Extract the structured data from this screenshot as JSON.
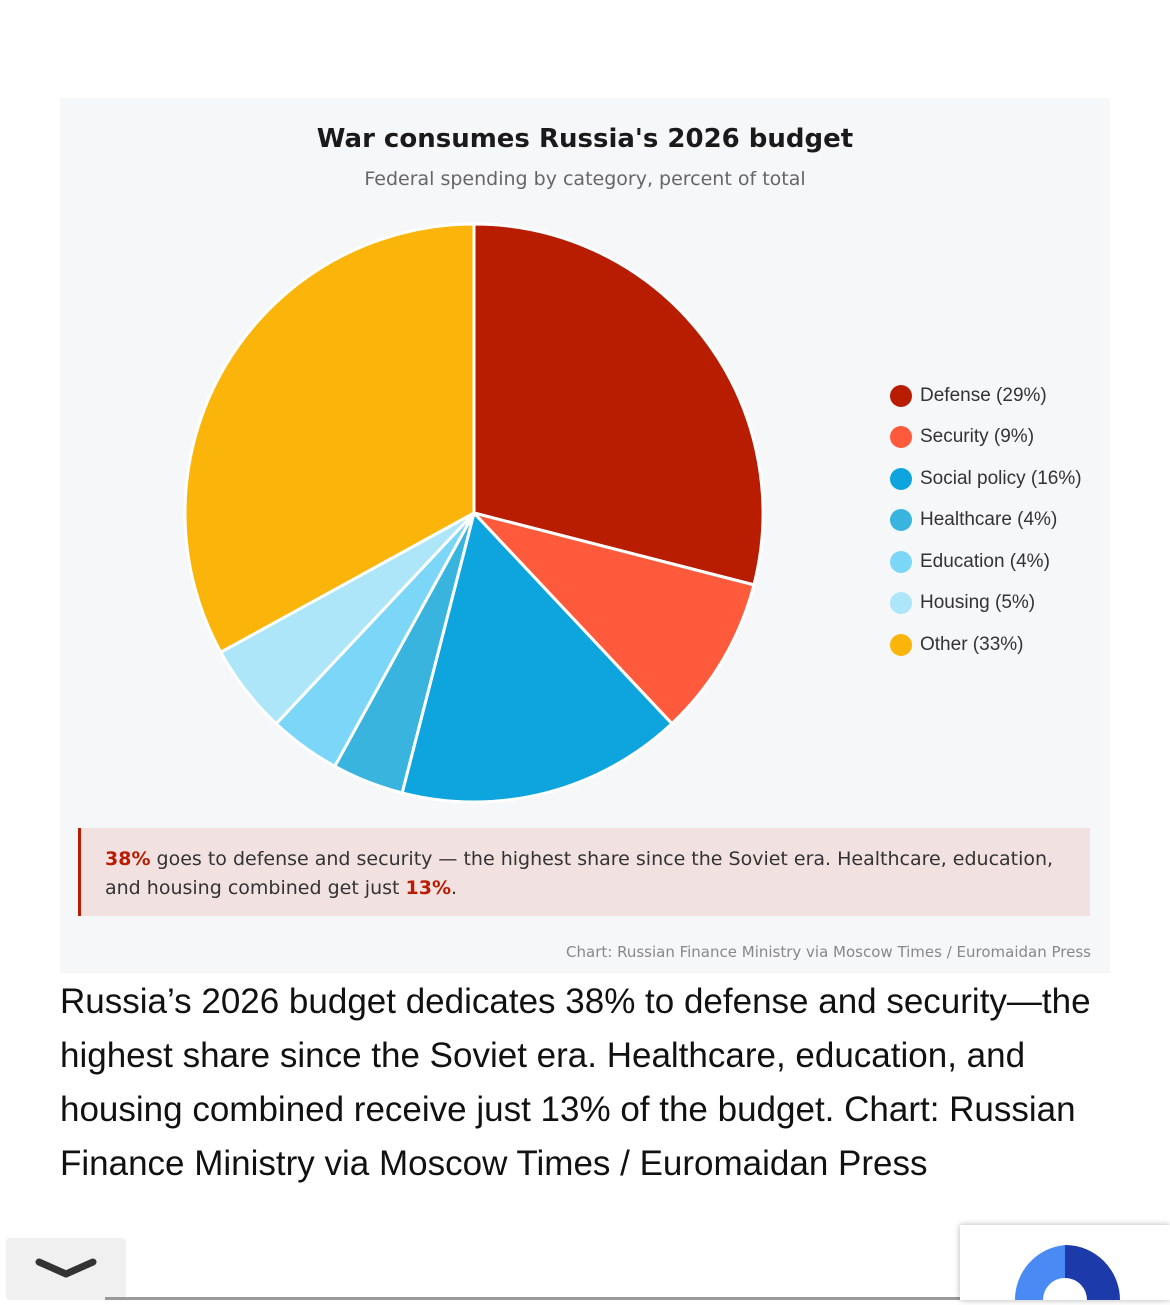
{
  "chart_data": {
    "type": "pie",
    "title": "War consumes Russia's 2026 budget",
    "subtitle": "Federal spending by category, percent of total",
    "legend_position": "right",
    "slices": [
      {
        "label": "Defense",
        "value": 29,
        "legend": "Defense (29%)",
        "color": "#b81d02"
      },
      {
        "label": "Security",
        "value": 9,
        "legend": "Security (9%)",
        "color": "#fe5a3b"
      },
      {
        "label": "Social policy",
        "value": 16,
        "legend": "Social policy (16%)",
        "color": "#0ea5de"
      },
      {
        "label": "Healthcare",
        "value": 4,
        "legend": "Healthcare (4%)",
        "color": "#38b4df"
      },
      {
        "label": "Education",
        "value": 4,
        "legend": "Education (4%)",
        "color": "#7cd6f8"
      },
      {
        "label": "Housing",
        "value": 5,
        "legend": "Housing (5%)",
        "color": "#ade5f9"
      },
      {
        "label": "Other",
        "value": 33,
        "legend": "Other (33%)",
        "color": "#fab40a"
      }
    ]
  },
  "note": {
    "pct1": "38%",
    "text1": " goes to defense and security — the highest share since the Soviet era. Healthcare, education, and housing combined get just ",
    "pct2": "13%",
    "text2": "."
  },
  "source": "Chart: Russian Finance Ministry via Moscow Times / Euromaidan Press",
  "caption": "Russia’s 2026 budget dedicates 38% to defense and security—the highest share since the Soviet era. Healthcare, education, and housing combined receive just 13% of the budget. Chart: Russian Finance Ministry via Moscow Times / Euromaidan Press"
}
